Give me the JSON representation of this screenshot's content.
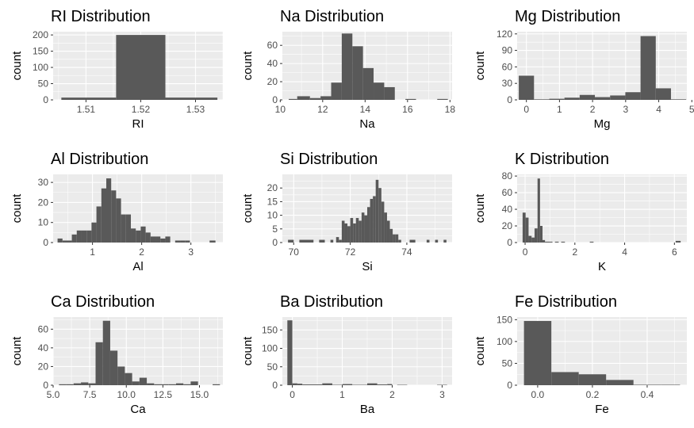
{
  "colors": {
    "panel_bg": "#ebebeb",
    "grid_major": "#ffffff",
    "bar_fill": "#595959",
    "tick_text": "#4d4d4d"
  },
  "chart_data": [
    {
      "type": "bar",
      "title": "RI Distribution",
      "xlabel": "RI",
      "ylabel": "count",
      "xlim": [
        1.504,
        1.535
      ],
      "ylim": [
        0,
        210
      ],
      "xticks": [
        1.51,
        1.52,
        1.53
      ],
      "xtick_labels": [
        "1.51",
        "1.52",
        "1.53"
      ],
      "yticks": [
        0,
        50,
        100,
        150,
        200
      ],
      "ytick_labels": [
        "0",
        "50",
        "100",
        "150",
        "200"
      ],
      "bins": [
        [
          1.5055,
          1.5155,
          7
        ],
        [
          1.5155,
          1.5245,
          200
        ],
        [
          1.5245,
          1.534,
          7
        ]
      ]
    },
    {
      "type": "bar",
      "title": "Na Distribution",
      "xlabel": "Na",
      "ylabel": "count",
      "xlim": [
        10.1,
        18.1
      ],
      "ylim": [
        0,
        75
      ],
      "xticks": [
        10,
        12,
        14,
        16,
        18
      ],
      "xtick_labels": [
        "10",
        "12",
        "14",
        "16",
        "18"
      ],
      "yticks": [
        0,
        20,
        40,
        60
      ],
      "ytick_labels": [
        "0",
        "20",
        "40",
        "60"
      ],
      "bins": [
        [
          10.4,
          10.8,
          1
        ],
        [
          10.8,
          11.4,
          4
        ],
        [
          11.4,
          11.9,
          2
        ],
        [
          11.9,
          12.4,
          4
        ],
        [
          12.4,
          12.9,
          19
        ],
        [
          12.9,
          13.4,
          73
        ],
        [
          13.4,
          13.9,
          59
        ],
        [
          13.9,
          14.4,
          35
        ],
        [
          14.4,
          14.9,
          19
        ],
        [
          14.9,
          15.4,
          14
        ],
        [
          15.4,
          15.9,
          0
        ],
        [
          15.9,
          16.4,
          1
        ],
        [
          16.4,
          17.4,
          0
        ],
        [
          17.4,
          17.9,
          1
        ]
      ]
    },
    {
      "type": "bar",
      "title": "Mg Distribution",
      "xlabel": "Mg",
      "ylabel": "count",
      "xlim": [
        -0.28,
        4.85
      ],
      "ylim": [
        0,
        124
      ],
      "xticks": [
        0,
        1,
        2,
        3,
        4,
        5
      ],
      "xtick_labels": [
        "0",
        "1",
        "2",
        "3",
        "4",
        "5"
      ],
      "yticks": [
        0,
        30,
        60,
        90,
        120
      ],
      "ytick_labels": [
        "0",
        "30",
        "60",
        "90",
        "120"
      ],
      "bins": [
        [
          -0.23,
          0.23,
          44
        ],
        [
          0.23,
          0.69,
          1
        ],
        [
          0.69,
          1.15,
          2
        ],
        [
          1.15,
          1.61,
          4
        ],
        [
          1.61,
          2.07,
          9
        ],
        [
          2.07,
          2.53,
          5
        ],
        [
          2.53,
          2.99,
          8
        ],
        [
          2.99,
          3.45,
          14
        ],
        [
          3.45,
          3.91,
          116
        ],
        [
          3.91,
          4.37,
          21
        ],
        [
          4.37,
          4.83,
          1
        ]
      ]
    },
    {
      "type": "bar",
      "title": "Al Distribution",
      "xlabel": "Al",
      "ylabel": "count",
      "xlim": [
        0.2,
        3.65
      ],
      "ylim": [
        0,
        34
      ],
      "xticks": [
        1,
        2,
        3
      ],
      "xtick_labels": [
        "1",
        "2",
        "3"
      ],
      "yticks": [
        0,
        10,
        20,
        30
      ],
      "ytick_labels": [
        "0",
        "10",
        "20",
        "30"
      ],
      "bins": [
        [
          0.29,
          0.39,
          2
        ],
        [
          0.39,
          0.58,
          1
        ],
        [
          0.58,
          0.68,
          4
        ],
        [
          0.68,
          0.78,
          6
        ],
        [
          0.78,
          0.88,
          6
        ],
        [
          0.88,
          0.98,
          6
        ],
        [
          0.98,
          1.08,
          10
        ],
        [
          1.08,
          1.18,
          18
        ],
        [
          1.18,
          1.28,
          27
        ],
        [
          1.28,
          1.38,
          32
        ],
        [
          1.38,
          1.48,
          26
        ],
        [
          1.48,
          1.58,
          22
        ],
        [
          1.58,
          1.68,
          14
        ],
        [
          1.68,
          1.78,
          14
        ],
        [
          1.78,
          1.88,
          7
        ],
        [
          1.88,
          1.98,
          6
        ],
        [
          1.98,
          2.08,
          8
        ],
        [
          2.08,
          2.18,
          5
        ],
        [
          2.18,
          2.28,
          3
        ],
        [
          2.28,
          2.38,
          3
        ],
        [
          2.38,
          2.48,
          2
        ],
        [
          2.48,
          2.58,
          3
        ],
        [
          2.58,
          2.68,
          0
        ],
        [
          2.68,
          2.78,
          1
        ],
        [
          2.78,
          2.88,
          1
        ],
        [
          2.88,
          2.98,
          1
        ],
        [
          3.38,
          3.5,
          1
        ]
      ]
    },
    {
      "type": "bar",
      "title": "Si Distribution",
      "xlabel": "Si",
      "ylabel": "count",
      "xlim": [
        69.6,
        75.6
      ],
      "ylim": [
        0,
        25
      ],
      "xticks": [
        70,
        72,
        74
      ],
      "xtick_labels": [
        "70",
        "72",
        "74"
      ],
      "yticks": [
        0,
        5,
        10,
        15,
        20
      ],
      "ytick_labels": [
        "0",
        "5",
        "10",
        "15",
        "20"
      ],
      "bins": [
        [
          69.8,
          70.0,
          1
        ],
        [
          70.2,
          70.7,
          1
        ],
        [
          70.9,
          71.1,
          1
        ],
        [
          71.3,
          71.4,
          1
        ],
        [
          71.4,
          71.5,
          0
        ],
        [
          71.5,
          71.6,
          2
        ],
        [
          71.6,
          71.7,
          1
        ],
        [
          71.7,
          71.8,
          8
        ],
        [
          71.8,
          71.9,
          7
        ],
        [
          71.9,
          72.0,
          6
        ],
        [
          72.0,
          72.1,
          9
        ],
        [
          72.1,
          72.2,
          7
        ],
        [
          72.2,
          72.3,
          9
        ],
        [
          72.3,
          72.4,
          8
        ],
        [
          72.4,
          72.5,
          11
        ],
        [
          72.5,
          72.6,
          10
        ],
        [
          72.6,
          72.7,
          13
        ],
        [
          72.7,
          72.8,
          16
        ],
        [
          72.8,
          72.9,
          17
        ],
        [
          72.9,
          73.0,
          23
        ],
        [
          73.0,
          73.1,
          20
        ],
        [
          73.1,
          73.2,
          15
        ],
        [
          73.2,
          73.3,
          11
        ],
        [
          73.3,
          73.4,
          8
        ],
        [
          73.4,
          73.5,
          5
        ],
        [
          73.5,
          73.6,
          3
        ],
        [
          73.6,
          73.7,
          3
        ],
        [
          73.7,
          73.8,
          1
        ],
        [
          74.1,
          74.3,
          1
        ],
        [
          74.4,
          74.6,
          0
        ],
        [
          74.7,
          74.8,
          1
        ],
        [
          75.0,
          75.1,
          1
        ],
        [
          75.3,
          75.4,
          1
        ]
      ]
    },
    {
      "type": "bar",
      "title": "K Distribution",
      "xlabel": "K",
      "ylabel": "count",
      "xlim": [
        -0.32,
        6.5
      ],
      "ylim": [
        0,
        82
      ],
      "xticks": [
        0,
        2,
        4,
        6
      ],
      "xtick_labels": [
        "0",
        "2",
        "4",
        "6"
      ],
      "yticks": [
        0,
        20,
        40,
        60,
        80
      ],
      "ytick_labels": [
        "0",
        "20",
        "40",
        "60",
        "80"
      ],
      "bins": [
        [
          -0.1,
          0.02,
          36
        ],
        [
          0.02,
          0.14,
          30
        ],
        [
          0.14,
          0.26,
          8
        ],
        [
          0.26,
          0.38,
          6
        ],
        [
          0.38,
          0.5,
          17
        ],
        [
          0.5,
          0.6,
          77
        ],
        [
          0.6,
          0.7,
          20
        ],
        [
          0.7,
          0.8,
          3
        ],
        [
          0.8,
          1.0,
          1
        ],
        [
          1.0,
          1.1,
          1
        ],
        [
          1.1,
          1.2,
          0
        ],
        [
          1.2,
          1.35,
          1
        ],
        [
          1.45,
          1.6,
          1
        ],
        [
          1.65,
          1.75,
          0
        ],
        [
          2.6,
          2.75,
          1
        ],
        [
          6.05,
          6.25,
          2
        ]
      ]
    },
    {
      "type": "bar",
      "title": "Ca Distribution",
      "xlabel": "Ca",
      "ylabel": "count",
      "xlim": [
        5.0,
        16.6
      ],
      "ylim": [
        0,
        73
      ],
      "xticks": [
        5.0,
        7.5,
        10.0,
        12.5,
        15.0
      ],
      "xtick_labels": [
        "5.0",
        "7.5",
        "10.0",
        "12.5",
        "15.0"
      ],
      "yticks": [
        0,
        20,
        40,
        60
      ],
      "ytick_labels": [
        "0",
        "20",
        "40",
        "60"
      ],
      "bins": [
        [
          5.4,
          5.9,
          1
        ],
        [
          5.9,
          6.4,
          1
        ],
        [
          6.4,
          6.9,
          2
        ],
        [
          6.9,
          7.4,
          3
        ],
        [
          7.4,
          7.9,
          2
        ],
        [
          7.9,
          8.4,
          46
        ],
        [
          8.4,
          8.9,
          69
        ],
        [
          8.9,
          9.4,
          37
        ],
        [
          9.4,
          9.9,
          20
        ],
        [
          9.9,
          10.4,
          13
        ],
        [
          10.4,
          10.9,
          4
        ],
        [
          10.9,
          11.4,
          8
        ],
        [
          11.4,
          11.9,
          2
        ],
        [
          11.9,
          12.4,
          1
        ],
        [
          12.4,
          12.9,
          1
        ],
        [
          12.9,
          13.4,
          1
        ],
        [
          13.4,
          13.9,
          2
        ],
        [
          13.9,
          14.4,
          1
        ],
        [
          14.4,
          14.9,
          4
        ],
        [
          14.9,
          15.4,
          0
        ],
        [
          15.9,
          16.4,
          1
        ]
      ]
    },
    {
      "type": "bar",
      "title": "Ba Distribution",
      "xlabel": "Ba",
      "ylabel": "count",
      "xlim": [
        -0.2,
        3.2
      ],
      "ylim": [
        0,
        185
      ],
      "xticks": [
        0,
        1,
        2,
        3
      ],
      "xtick_labels": [
        "0",
        "1",
        "2",
        "3"
      ],
      "yticks": [
        0,
        50,
        100,
        150
      ],
      "ytick_labels": [
        "0",
        "50",
        "100",
        "150"
      ],
      "bins": [
        [
          -0.1,
          0.0,
          176
        ],
        [
          0.0,
          0.1,
          5
        ],
        [
          0.1,
          0.2,
          4
        ],
        [
          0.2,
          0.6,
          2
        ],
        [
          0.6,
          0.8,
          5
        ],
        [
          0.8,
          1.0,
          1
        ],
        [
          1.0,
          1.2,
          3
        ],
        [
          1.2,
          1.5,
          1
        ],
        [
          1.5,
          1.7,
          5
        ],
        [
          1.7,
          1.9,
          2
        ],
        [
          1.9,
          2.0,
          3
        ],
        [
          2.1,
          2.3,
          1
        ],
        [
          2.9,
          3.1,
          1
        ]
      ]
    },
    {
      "type": "bar",
      "title": "Fe Distribution",
      "xlabel": "Fe",
      "ylabel": "count",
      "xlim": [
        -0.075,
        0.545
      ],
      "ylim": [
        0,
        156
      ],
      "xticks": [
        0.0,
        0.2,
        0.4
      ],
      "xtick_labels": [
        "0.0",
        "0.2",
        "0.4"
      ],
      "yticks": [
        0,
        50,
        100,
        150
      ],
      "ytick_labels": [
        "0",
        "50",
        "100",
        "150"
      ],
      "bins": [
        [
          -0.05,
          0.05,
          147
        ],
        [
          0.05,
          0.15,
          30
        ],
        [
          0.15,
          0.25,
          25
        ],
        [
          0.25,
          0.35,
          12
        ],
        [
          0.35,
          0.45,
          1
        ],
        [
          0.45,
          0.52,
          1
        ]
      ]
    }
  ]
}
